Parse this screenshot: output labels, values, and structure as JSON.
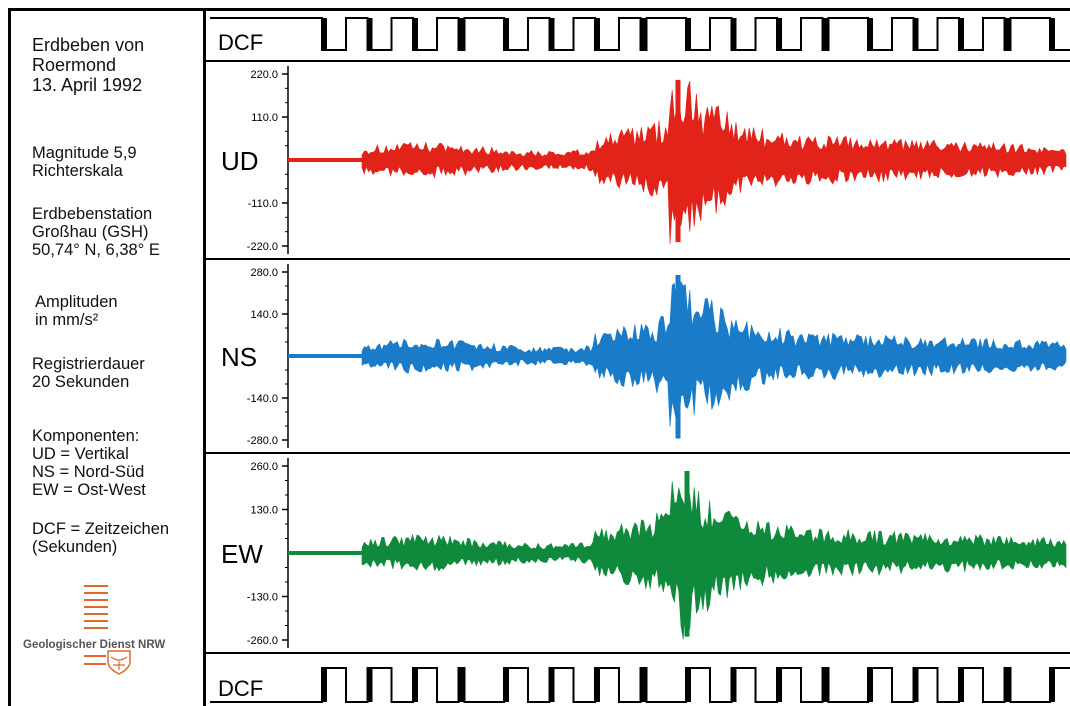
{
  "sidebar": {
    "title": "Erdbeben von\nRoermond\n13. April 1992",
    "magnitude": "Magnitude 5,9\nRichterskala",
    "station": "Erdbebenstation\nGroßhau (GSH)\n50,74° N, 6,38° E",
    "amplitude": "Amplituden\nin mm/s²",
    "duration": "Registrierdauer\n20 Sekunden",
    "components": "Komponenten:\nUD = Vertikal\nNS = Nord-Süd\nEW = Ost-West",
    "dcf": "DCF = Zeitzeichen\n(Sekunden)",
    "logo_text": "Geologischer Dienst NRW"
  },
  "colors": {
    "UD": "#e2231a",
    "NS": "#1a7cc8",
    "EW": "#0f8a3c",
    "logo": "#e06a2a"
  },
  "dcf_label_top": "DCF",
  "dcf_label_bottom": "DCF",
  "chart_data": {
    "type": "line",
    "x_label": "",
    "panels": [
      {
        "name": "UD",
        "label": "UD",
        "ticks": [
          "220.0",
          "110.0",
          "-110.0",
          "-220.0"
        ],
        "ylim": [
          -220,
          220
        ],
        "peak": [
          205,
          -210
        ],
        "onset_sec": 7.3
      },
      {
        "name": "NS",
        "label": "NS",
        "ticks": [
          "280.0",
          "140.0",
          "-140.0",
          "-280.0"
        ],
        "ylim": [
          -280,
          280
        ],
        "peak": [
          270,
          -275
        ],
        "onset_sec": 7.3
      },
      {
        "name": "EW",
        "label": "EW",
        "ticks": [
          "260.0",
          "130.0",
          "-130.0",
          "-260.0"
        ],
        "ylim": [
          -260,
          260
        ],
        "peak": [
          245,
          -250
        ],
        "onset_sec": 7.3
      }
    ],
    "duration_sec": 20
  }
}
